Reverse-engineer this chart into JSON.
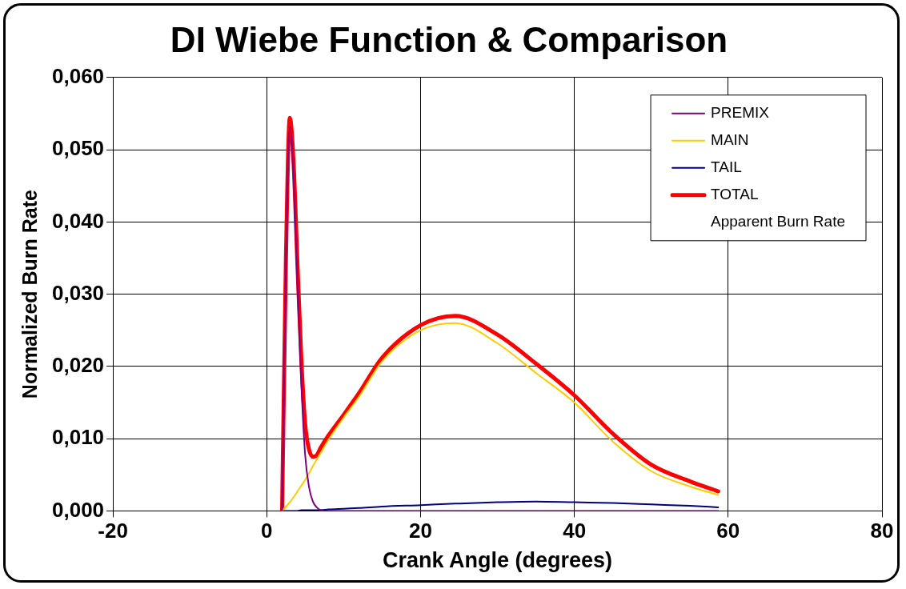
{
  "chart_data": {
    "type": "line",
    "title": "DI Wiebe Function & Comparison",
    "xlabel": "Crank Angle (degrees)",
    "ylabel": "Normalized Burn Rate",
    "x": [
      2,
      2.5,
      3,
      3.5,
      4,
      4.5,
      5,
      5.5,
      6,
      6.5,
      7,
      8,
      10,
      12,
      15,
      20,
      24.5,
      30,
      35,
      40,
      45,
      50,
      55,
      58.7
    ],
    "series": [
      {
        "name": "PREMIX",
        "color": "#800080",
        "values": [
          0,
          0.034,
          0.0532,
          0.046,
          0.031,
          0.0175,
          0.0077,
          0.0033,
          0.0013,
          0.0005,
          0.0001,
          0,
          0,
          0,
          0,
          0,
          0,
          0,
          0,
          0,
          0,
          0,
          0,
          0
        ]
      },
      {
        "name": "MAIN",
        "color": "#ffcc00",
        "values": [
          0,
          0.0006,
          0.0012,
          0.0019,
          0.0027,
          0.0035,
          0.0043,
          0.0052,
          0.0062,
          0.0071,
          0.008,
          0.0098,
          0.0129,
          0.0158,
          0.0207,
          0.025,
          0.026,
          0.0232,
          0.0191,
          0.015,
          0.0096,
          0.0055,
          0.0034,
          0.0022
        ]
      },
      {
        "name": "TAIL",
        "color": "#000080",
        "values": [
          0,
          0,
          0,
          0,
          0,
          0.0001,
          0.0001,
          0.0001,
          0.0001,
          0.0001,
          0.0001,
          0.0002,
          0.0003,
          0.0004,
          0.0006,
          0.0008,
          0.001,
          0.0012,
          0.0013,
          0.0012,
          0.0011,
          0.0009,
          0.0007,
          0.0005
        ]
      },
      {
        "name": "TOTAL",
        "color": "#ff0000",
        "values": [
          0,
          0.035,
          0.0544,
          0.048,
          0.034,
          0.021,
          0.012,
          0.0085,
          0.0075,
          0.0077,
          0.0087,
          0.0104,
          0.0133,
          0.0163,
          0.0212,
          0.0257,
          0.027,
          0.0244,
          0.0204,
          0.016,
          0.0107,
          0.0064,
          0.0041,
          0.0027
        ]
      },
      {
        "name": "Apparent Burn Rate",
        "values": [
          null,
          null,
          null,
          null,
          null,
          null,
          null,
          null,
          null,
          null,
          null,
          null,
          null,
          null,
          null,
          null,
          null,
          null,
          null,
          null,
          null,
          null,
          null,
          null
        ]
      }
    ],
    "xlim": [
      -20,
      80
    ],
    "xticks": [
      -20,
      0,
      20,
      40,
      60,
      80
    ],
    "ylim": [
      0,
      0.06
    ],
    "yticks": [
      {
        "value": 0,
        "label": "0,000"
      },
      {
        "value": 0.01,
        "label": "0,010"
      },
      {
        "value": 0.02,
        "label": "0,020"
      },
      {
        "value": 0.03,
        "label": "0,030"
      },
      {
        "value": 0.04,
        "label": "0,040"
      },
      {
        "value": 0.05,
        "label": "0,050"
      },
      {
        "value": 0.06,
        "label": "0,060"
      }
    ],
    "grid": true,
    "legend": "top right",
    "marker": "none",
    "line_style": "solid"
  }
}
